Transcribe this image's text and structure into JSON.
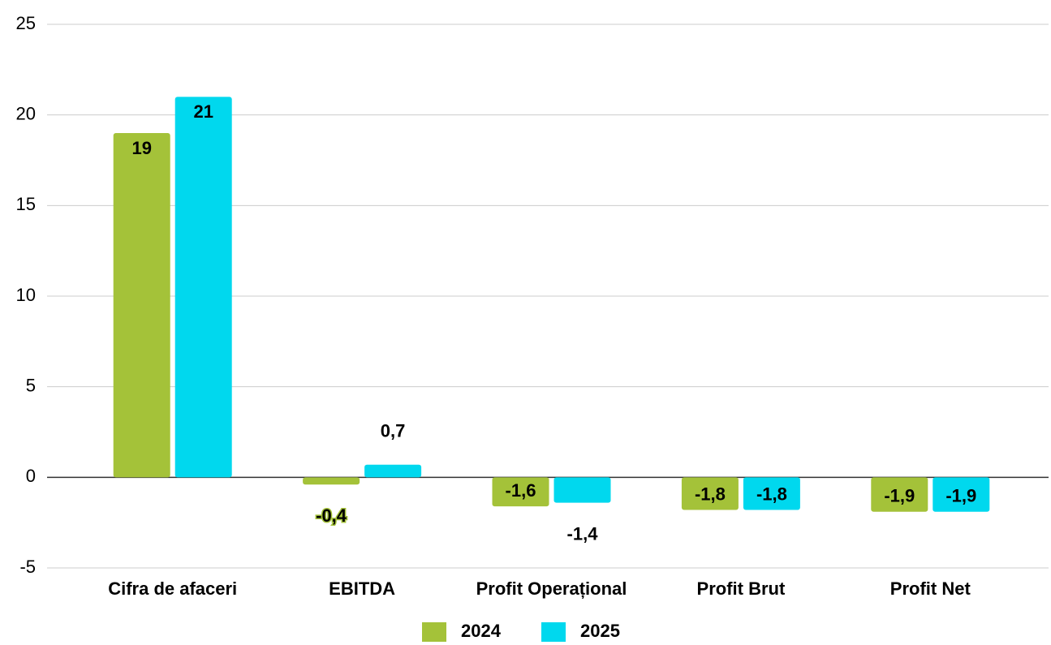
{
  "chart_data": {
    "type": "bar",
    "categories": [
      "Cifra de afaceri",
      "EBITDA",
      "Profit Operațional",
      "Profit Brut",
      "Profit Net"
    ],
    "series": [
      {
        "name": "2024",
        "color": "#a4c239",
        "values": [
          19,
          -0.4,
          -1.6,
          -1.8,
          -1.9
        ],
        "value_labels": [
          "19",
          "-0,4",
          "-1,6",
          "-1,8",
          "-1,9"
        ]
      },
      {
        "name": "2025",
        "color": "#00d8ee",
        "values": [
          21,
          0.7,
          -1.4,
          -1.8,
          -1.9
        ],
        "value_labels": [
          "21",
          "0,7",
          "-1,4",
          "-1,8",
          "-1,9"
        ]
      }
    ],
    "ylim": [
      -5,
      25
    ],
    "yticks": [
      -5,
      0,
      5,
      10,
      15,
      20,
      25
    ],
    "grid": true,
    "legend": "bottom"
  }
}
